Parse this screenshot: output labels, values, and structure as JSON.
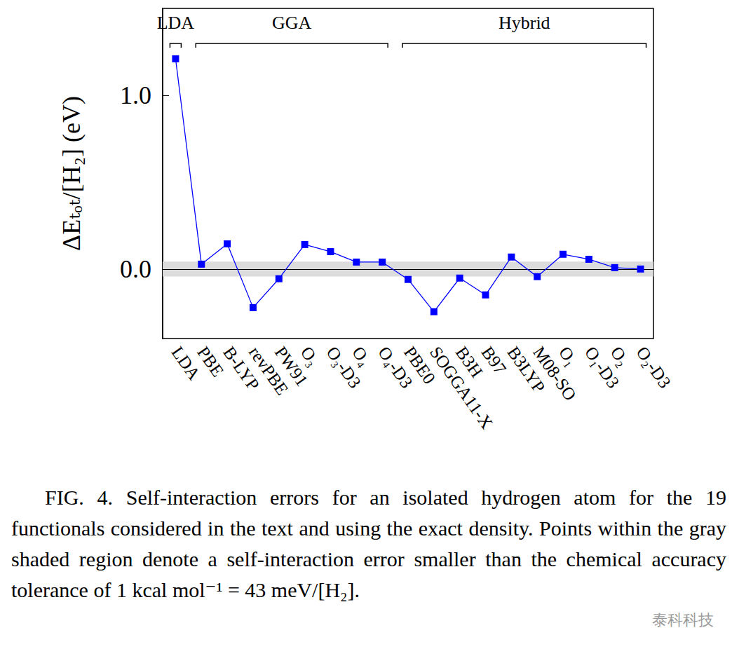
{
  "chart_data": {
    "type": "line",
    "ylabel": "ΔEₜₒₜ/[H₂] (eV)",
    "categories": [
      "LDA",
      "PBE",
      "B-LYP",
      "revPBE",
      "PW91",
      "O₃",
      "O₃-D3",
      "O₄",
      "O₄-D3",
      "PBE0",
      "SOGGA11-X",
      "B3H",
      "B97",
      "B3LYP",
      "M08-SO",
      "O₁",
      "O₁-D3",
      "O₂",
      "O₂-D3"
    ],
    "values": [
      1.21,
      0.028,
      0.145,
      -0.222,
      -0.056,
      0.141,
      0.1,
      0.04,
      0.04,
      -0.06,
      -0.246,
      -0.052,
      -0.149,
      0.069,
      -0.044,
      0.085,
      0.056,
      0.008,
      0.0
    ],
    "color": "#0000ff",
    "marker": "square",
    "ylim": [
      -0.4,
      1.5
    ],
    "yticks": [
      {
        "value": 0,
        "label": "0.0"
      },
      {
        "value": 1,
        "label": "1.0"
      }
    ],
    "grid": false,
    "tolerance": 0.043,
    "reference_line": 0,
    "groups": [
      {
        "label": "LDA",
        "from": "LDA",
        "to": "LDA"
      },
      {
        "label": "GGA",
        "from": "PBE",
        "to": "O₄-D3"
      },
      {
        "label": "Hybrid",
        "from": "PBE0",
        "to": "O₂-D3"
      }
    ],
    "caption": "FIG. 4. Self-interaction errors for an isolated hydrogen atom for the 19 functionals considered in the text and using the exact density. Points within the gray shaded region denote a self-interaction error smaller than the chemical accuracy tolerance of 1 kcal mol⁻¹ = 43 meV/[H₂].",
    "watermark": "泰科科技"
  }
}
